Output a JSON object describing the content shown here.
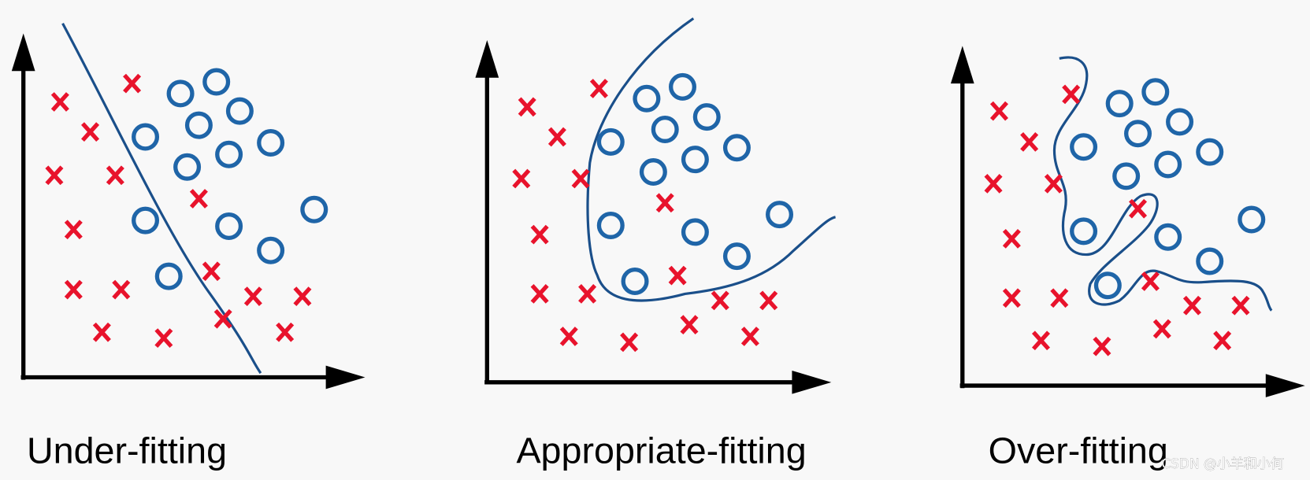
{
  "panels": [
    {
      "label": "Under-fitting"
    },
    {
      "label": "Appropriate-fitting"
    },
    {
      "label": "Over-fitting"
    }
  ],
  "watermark": "CSDN @小羊和小何"
}
